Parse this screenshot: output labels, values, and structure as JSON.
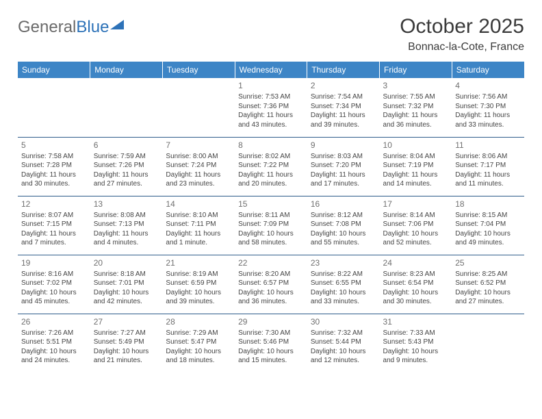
{
  "brand": {
    "part1": "General",
    "part2": "Blue"
  },
  "title": "October 2025",
  "location": "Bonnac-la-Cote, France",
  "header_bg": "#3d85c6",
  "day_border": "#2d5b8a",
  "day_headers": [
    "Sunday",
    "Monday",
    "Tuesday",
    "Wednesday",
    "Thursday",
    "Friday",
    "Saturday"
  ],
  "weeks": [
    [
      null,
      null,
      null,
      {
        "n": "1",
        "sr": "Sunrise: 7:53 AM",
        "ss": "Sunset: 7:36 PM",
        "dl": "Daylight: 11 hours and 43 minutes."
      },
      {
        "n": "2",
        "sr": "Sunrise: 7:54 AM",
        "ss": "Sunset: 7:34 PM",
        "dl": "Daylight: 11 hours and 39 minutes."
      },
      {
        "n": "3",
        "sr": "Sunrise: 7:55 AM",
        "ss": "Sunset: 7:32 PM",
        "dl": "Daylight: 11 hours and 36 minutes."
      },
      {
        "n": "4",
        "sr": "Sunrise: 7:56 AM",
        "ss": "Sunset: 7:30 PM",
        "dl": "Daylight: 11 hours and 33 minutes."
      }
    ],
    [
      {
        "n": "5",
        "sr": "Sunrise: 7:58 AM",
        "ss": "Sunset: 7:28 PM",
        "dl": "Daylight: 11 hours and 30 minutes."
      },
      {
        "n": "6",
        "sr": "Sunrise: 7:59 AM",
        "ss": "Sunset: 7:26 PM",
        "dl": "Daylight: 11 hours and 27 minutes."
      },
      {
        "n": "7",
        "sr": "Sunrise: 8:00 AM",
        "ss": "Sunset: 7:24 PM",
        "dl": "Daylight: 11 hours and 23 minutes."
      },
      {
        "n": "8",
        "sr": "Sunrise: 8:02 AM",
        "ss": "Sunset: 7:22 PM",
        "dl": "Daylight: 11 hours and 20 minutes."
      },
      {
        "n": "9",
        "sr": "Sunrise: 8:03 AM",
        "ss": "Sunset: 7:20 PM",
        "dl": "Daylight: 11 hours and 17 minutes."
      },
      {
        "n": "10",
        "sr": "Sunrise: 8:04 AM",
        "ss": "Sunset: 7:19 PM",
        "dl": "Daylight: 11 hours and 14 minutes."
      },
      {
        "n": "11",
        "sr": "Sunrise: 8:06 AM",
        "ss": "Sunset: 7:17 PM",
        "dl": "Daylight: 11 hours and 11 minutes."
      }
    ],
    [
      {
        "n": "12",
        "sr": "Sunrise: 8:07 AM",
        "ss": "Sunset: 7:15 PM",
        "dl": "Daylight: 11 hours and 7 minutes."
      },
      {
        "n": "13",
        "sr": "Sunrise: 8:08 AM",
        "ss": "Sunset: 7:13 PM",
        "dl": "Daylight: 11 hours and 4 minutes."
      },
      {
        "n": "14",
        "sr": "Sunrise: 8:10 AM",
        "ss": "Sunset: 7:11 PM",
        "dl": "Daylight: 11 hours and 1 minute."
      },
      {
        "n": "15",
        "sr": "Sunrise: 8:11 AM",
        "ss": "Sunset: 7:09 PM",
        "dl": "Daylight: 10 hours and 58 minutes."
      },
      {
        "n": "16",
        "sr": "Sunrise: 8:12 AM",
        "ss": "Sunset: 7:08 PM",
        "dl": "Daylight: 10 hours and 55 minutes."
      },
      {
        "n": "17",
        "sr": "Sunrise: 8:14 AM",
        "ss": "Sunset: 7:06 PM",
        "dl": "Daylight: 10 hours and 52 minutes."
      },
      {
        "n": "18",
        "sr": "Sunrise: 8:15 AM",
        "ss": "Sunset: 7:04 PM",
        "dl": "Daylight: 10 hours and 49 minutes."
      }
    ],
    [
      {
        "n": "19",
        "sr": "Sunrise: 8:16 AM",
        "ss": "Sunset: 7:02 PM",
        "dl": "Daylight: 10 hours and 45 minutes."
      },
      {
        "n": "20",
        "sr": "Sunrise: 8:18 AM",
        "ss": "Sunset: 7:01 PM",
        "dl": "Daylight: 10 hours and 42 minutes."
      },
      {
        "n": "21",
        "sr": "Sunrise: 8:19 AM",
        "ss": "Sunset: 6:59 PM",
        "dl": "Daylight: 10 hours and 39 minutes."
      },
      {
        "n": "22",
        "sr": "Sunrise: 8:20 AM",
        "ss": "Sunset: 6:57 PM",
        "dl": "Daylight: 10 hours and 36 minutes."
      },
      {
        "n": "23",
        "sr": "Sunrise: 8:22 AM",
        "ss": "Sunset: 6:55 PM",
        "dl": "Daylight: 10 hours and 33 minutes."
      },
      {
        "n": "24",
        "sr": "Sunrise: 8:23 AM",
        "ss": "Sunset: 6:54 PM",
        "dl": "Daylight: 10 hours and 30 minutes."
      },
      {
        "n": "25",
        "sr": "Sunrise: 8:25 AM",
        "ss": "Sunset: 6:52 PM",
        "dl": "Daylight: 10 hours and 27 minutes."
      }
    ],
    [
      {
        "n": "26",
        "sr": "Sunrise: 7:26 AM",
        "ss": "Sunset: 5:51 PM",
        "dl": "Daylight: 10 hours and 24 minutes."
      },
      {
        "n": "27",
        "sr": "Sunrise: 7:27 AM",
        "ss": "Sunset: 5:49 PM",
        "dl": "Daylight: 10 hours and 21 minutes."
      },
      {
        "n": "28",
        "sr": "Sunrise: 7:29 AM",
        "ss": "Sunset: 5:47 PM",
        "dl": "Daylight: 10 hours and 18 minutes."
      },
      {
        "n": "29",
        "sr": "Sunrise: 7:30 AM",
        "ss": "Sunset: 5:46 PM",
        "dl": "Daylight: 10 hours and 15 minutes."
      },
      {
        "n": "30",
        "sr": "Sunrise: 7:32 AM",
        "ss": "Sunset: 5:44 PM",
        "dl": "Daylight: 10 hours and 12 minutes."
      },
      {
        "n": "31",
        "sr": "Sunrise: 7:33 AM",
        "ss": "Sunset: 5:43 PM",
        "dl": "Daylight: 10 hours and 9 minutes."
      },
      null
    ]
  ]
}
